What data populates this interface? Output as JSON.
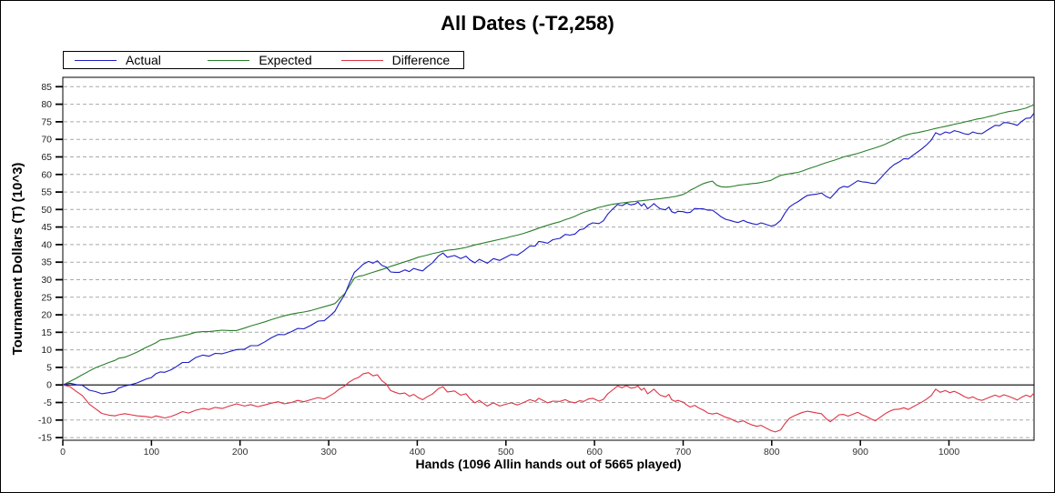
{
  "chart_data": {
    "type": "line",
    "title": "All Dates (-T2,258)",
    "xlabel": "Hands (1096 Allin hands out of 5665 played)",
    "ylabel": "Tournament Dollars (T) (10^3)",
    "xlim": [
      0,
      1096
    ],
    "ylim": [
      -15.76,
      87.68
    ],
    "xticks": [
      0,
      100,
      200,
      300,
      400,
      500,
      600,
      700,
      800,
      900,
      1000
    ],
    "yticks": [
      85,
      80,
      75,
      70,
      65,
      60,
      55,
      50,
      45,
      40,
      35,
      30,
      25,
      20,
      15,
      10,
      5,
      0,
      -5,
      -10,
      -15
    ],
    "grid": "horizontal-dashed",
    "gridline_color": "#a9a9a9",
    "zero_line": true,
    "legend_position": "top-left",
    "x": [
      0,
      8,
      15,
      22,
      30,
      37,
      44,
      52,
      59,
      63,
      70,
      77,
      84,
      94,
      100,
      105,
      110,
      115,
      122,
      128,
      135,
      142,
      150,
      158,
      165,
      172,
      180,
      188,
      196,
      205,
      212,
      220,
      228,
      235,
      243,
      250,
      258,
      265,
      272,
      280,
      288,
      295,
      302,
      307,
      312,
      318,
      323,
      329,
      334,
      339,
      345,
      350,
      355,
      360,
      365,
      370,
      375,
      380,
      386,
      391,
      396,
      401,
      406,
      411,
      417,
      424,
      429,
      434,
      442,
      449,
      455,
      459,
      465,
      470,
      479,
      486,
      493,
      500,
      506,
      513,
      520,
      527,
      533,
      537,
      542,
      547,
      553,
      561,
      567,
      572,
      578,
      583,
      588,
      593,
      598,
      605,
      610,
      615,
      620,
      626,
      631,
      636,
      641,
      646,
      649,
      653,
      656,
      660,
      664,
      667,
      670,
      674,
      680,
      684,
      687,
      691,
      694,
      700,
      704,
      708,
      713,
      718,
      723,
      728,
      733,
      738,
      743,
      748,
      753,
      758,
      762,
      768,
      772,
      778,
      783,
      788,
      793,
      799,
      804,
      810,
      815,
      820,
      825,
      830,
      835,
      840,
      845,
      851,
      856,
      861,
      866,
      871,
      876,
      881,
      886,
      891,
      897,
      902,
      907,
      912,
      917,
      923,
      928,
      933,
      938,
      944,
      949,
      954,
      959,
      964,
      970,
      975,
      980,
      985,
      990,
      996,
      1001,
      1006,
      1012,
      1017,
      1022,
      1027,
      1032,
      1037,
      1042,
      1047,
      1052,
      1057,
      1062,
      1067,
      1072,
      1077,
      1082,
      1087,
      1092,
      1096
    ],
    "series": [
      {
        "name": "Actual",
        "color": "#1c1cc4",
        "values": [
          0,
          0.5,
          0.1,
          -0.1,
          -1.5,
          -1.9,
          -2.5,
          -2.2,
          -1.8,
          -0.9,
          -0.3,
          0.1,
          0.6,
          1.7,
          2.1,
          3.2,
          3.7,
          3.6,
          4.3,
          5.2,
          6.4,
          6.4,
          7.8,
          8.5,
          8.2,
          9,
          8.9,
          9.5,
          10.1,
          10.2,
          11.2,
          11.2,
          12.3,
          13.4,
          14.4,
          14.3,
          15.2,
          16.1,
          16,
          17,
          18.2,
          18.3,
          19.8,
          21,
          23.3,
          25.7,
          28.8,
          32.1,
          33.2,
          34.4,
          35.2,
          34.7,
          35.4,
          34.1,
          33.6,
          32.2,
          32.1,
          32.1,
          32.8,
          32.3,
          33.2,
          32.8,
          32.5,
          33.6,
          34.8,
          36.8,
          37.6,
          36.4,
          36.9,
          36,
          36.7,
          35.7,
          34.8,
          35.8,
          34.7,
          36,
          35.5,
          36.4,
          37.2,
          37,
          38.2,
          39.6,
          39.6,
          40.9,
          40.7,
          40.4,
          41.4,
          41.8,
          42.9,
          42.7,
          43,
          44.2,
          44.5,
          45.6,
          46.2,
          46,
          46.8,
          48.7,
          50,
          51.4,
          51.1,
          51.8,
          51.3,
          51.6,
          52.1,
          51,
          51.7,
          50.2,
          51,
          51.7,
          51,
          50.2,
          49.9,
          50.7,
          49.4,
          49,
          49.5,
          49.4,
          49.1,
          49.2,
          50.3,
          50.2,
          50.2,
          49.8,
          49.8,
          48.9,
          47.9,
          47.2,
          46.9,
          46.5,
          46.3,
          46.9,
          46.4,
          46,
          45.7,
          46.2,
          45.8,
          45.3,
          45.6,
          46.9,
          49,
          50.7,
          51.6,
          52.3,
          53.2,
          54,
          54.2,
          54.4,
          54.7,
          53.8,
          53.2,
          54.6,
          56,
          56.6,
          56.4,
          57.2,
          58.2,
          57.9,
          57.8,
          57.5,
          57.4,
          59,
          60.4,
          61.7,
          62.8,
          63.6,
          64.5,
          64.4,
          65.4,
          66.3,
          67.4,
          68.5,
          69.8,
          71.9,
          71.3,
          72.1,
          71.8,
          72.5,
          72.1,
          71.6,
          71.4,
          72.1,
          71.7,
          71.6,
          72.4,
          73.2,
          74,
          73.9,
          74.8,
          74.7,
          74.4,
          74,
          75.1,
          76,
          76.1,
          77.5
        ]
      },
      {
        "name": "Expected",
        "color": "#2a7e2a",
        "values": [
          0,
          1,
          1.9,
          2.9,
          4,
          4.9,
          5.6,
          6.4,
          7,
          7.6,
          7.9,
          8.6,
          9.4,
          10.7,
          11.4,
          12,
          12.8,
          13,
          13.3,
          13.6,
          14,
          14.4,
          15,
          15.2,
          15.2,
          15.4,
          15.6,
          15.5,
          15.5,
          16.2,
          16.8,
          17.4,
          18,
          18.6,
          19.2,
          19.7,
          20.2,
          20.5,
          20.8,
          21.2,
          21.8,
          22.3,
          22.8,
          23.2,
          24.5,
          26,
          28,
          30.4,
          31,
          31.2,
          31.7,
          32.1,
          32.5,
          32.9,
          33.3,
          33.8,
          34.2,
          34.6,
          35.1,
          35.5,
          35.9,
          36.4,
          36.7,
          37,
          37.4,
          37.8,
          38.1,
          38.4,
          38.6,
          38.9,
          39.2,
          39.5,
          39.9,
          40.2,
          40.7,
          41.1,
          41.5,
          41.9,
          42.3,
          42.7,
          43.2,
          43.8,
          44.3,
          44.7,
          45.1,
          45.5,
          46,
          46.5,
          47.1,
          47.5,
          48.1,
          48.7,
          49.2,
          49.6,
          50,
          50.6,
          50.9,
          51.2,
          51.5,
          51.7,
          51.9,
          52,
          52.2,
          52.3,
          52.4,
          52.5,
          52.6,
          52.7,
          52.8,
          52.9,
          53,
          53.1,
          53.3,
          53.4,
          53.6,
          53.7,
          53.9,
          54.3,
          54.8,
          55.5,
          56.1,
          56.8,
          57.4,
          57.8,
          58.1,
          56.9,
          56.5,
          56.4,
          56.5,
          56.7,
          56.9,
          57.1,
          57.2,
          57.4,
          57.5,
          57.7,
          58,
          58.3,
          59,
          59.7,
          60,
          60.2,
          60.4,
          60.6,
          61,
          61.5,
          61.9,
          62.4,
          62.9,
          63.3,
          63.7,
          64.1,
          64.5,
          65,
          65.3,
          65.6,
          66,
          66.4,
          66.8,
          67.2,
          67.6,
          68.1,
          68.6,
          69.2,
          69.8,
          70.5,
          71,
          71.4,
          71.7,
          71.9,
          72.2,
          72.5,
          72.8,
          73.1,
          73.4,
          73.7,
          74,
          74.3,
          74.6,
          74.9,
          75.2,
          75.5,
          75.8,
          76,
          76.3,
          76.6,
          76.9,
          77.3,
          77.6,
          77.9,
          78.1,
          78.3,
          78.6,
          78.9,
          79.5,
          79.8
        ]
      },
      {
        "name": "Difference",
        "color": "#dd3344",
        "values": [
          0,
          -0.5,
          -1.8,
          -3,
          -5.5,
          -6.8,
          -8.1,
          -8.6,
          -8.8,
          -8.5,
          -8.2,
          -8.5,
          -8.8,
          -9,
          -9.3,
          -8.8,
          -9.1,
          -9.4,
          -9,
          -8.4,
          -7.6,
          -8,
          -7.2,
          -6.7,
          -7,
          -6.4,
          -6.7,
          -6,
          -5.4,
          -6,
          -5.6,
          -6.2,
          -5.7,
          -5.2,
          -4.8,
          -5.4,
          -5,
          -4.4,
          -4.8,
          -4.2,
          -3.6,
          -4,
          -3,
          -2.2,
          -1.2,
          -0.3,
          0.8,
          1.7,
          2.2,
          3.2,
          3.5,
          2.6,
          2.9,
          1.2,
          0.3,
          -1.6,
          -2.1,
          -2.5,
          -2.3,
          -3.2,
          -2.7,
          -3.6,
          -4.2,
          -3.4,
          -2.6,
          -1,
          -0.5,
          -2,
          -1.7,
          -2.9,
          -2.5,
          -3.8,
          -5.1,
          -4.4,
          -6,
          -5.1,
          -6,
          -5.5,
          -5.1,
          -5.7,
          -5,
          -4.2,
          -4.7,
          -3.8,
          -4.4,
          -5.1,
          -4.6,
          -4.7,
          -4.2,
          -4.8,
          -5.1,
          -4.5,
          -4.7,
          -4,
          -3.8,
          -4.6,
          -4.1,
          -2.5,
          -1.5,
          -0.3,
          -0.8,
          -0.2,
          -0.9,
          -0.7,
          -0.3,
          -1.5,
          -0.9,
          -2.5,
          -1.8,
          -1.2,
          -2,
          -2.9,
          -3.4,
          -2.7,
          -4.2,
          -4.7,
          -4.4,
          -4.9,
          -5.7,
          -6.3,
          -5.8,
          -6.6,
          -7.2,
          -8,
          -8.3,
          -8,
          -8.6,
          -9.2,
          -9.6,
          -10.2,
          -10.6,
          -10.2,
          -10.8,
          -11.4,
          -11.8,
          -11.5,
          -12.2,
          -13,
          -13.4,
          -12.8,
          -11,
          -9.5,
          -8.8,
          -8.3,
          -7.8,
          -7.5,
          -7.7,
          -8,
          -8.2,
          -9.5,
          -10.5,
          -9.5,
          -8.5,
          -8.4,
          -8.9,
          -8.4,
          -7.8,
          -8.5,
          -9,
          -9.7,
          -10.2,
          -9.1,
          -8.2,
          -7.5,
          -7,
          -6.9,
          -6.5,
          -7,
          -6.3,
          -5.6,
          -4.8,
          -4,
          -3,
          -1.2,
          -2.1,
          -1.6,
          -2.2,
          -1.8,
          -2.5,
          -3.3,
          -3.8,
          -3.4,
          -4.1,
          -4.4,
          -3.9,
          -3.4,
          -2.9,
          -3.4,
          -2.8,
          -3.2,
          -3.7,
          -4.3,
          -3.5,
          -2.9,
          -3.4,
          -2.3
        ]
      }
    ]
  },
  "layout_text": {
    "title": "All Dates (-T2,258)",
    "xlabel": "Hands (1096 Allin hands out of 5665 played)",
    "ylabel": "Tournament Dollars (T) (10^3)"
  }
}
